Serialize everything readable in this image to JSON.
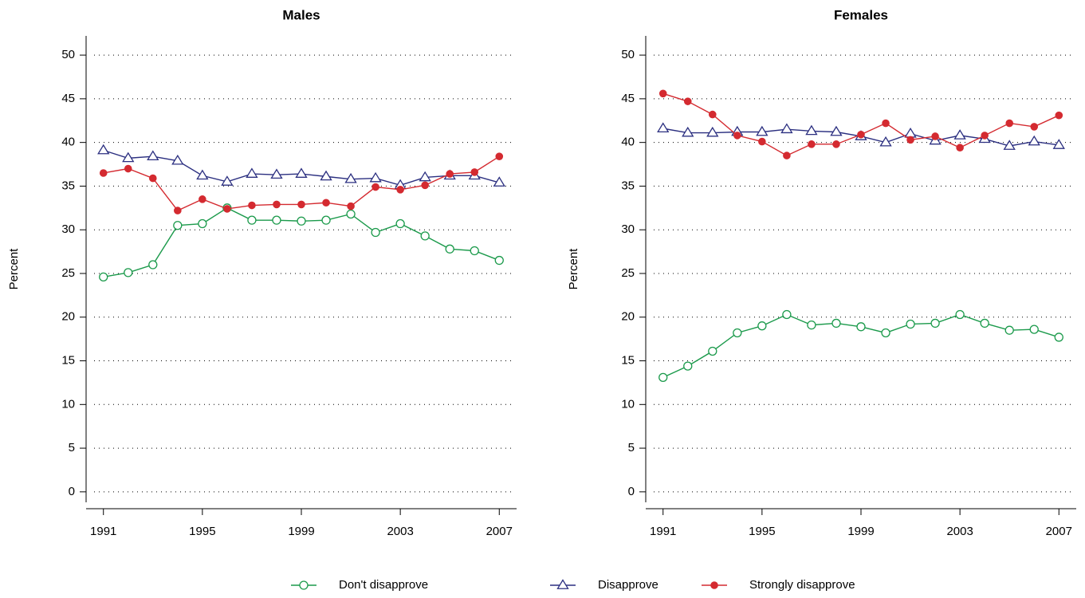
{
  "chart_data": [
    {
      "type": "line",
      "title": "Males",
      "y_label": "Percent",
      "x": [
        1991,
        1992,
        1993,
        1994,
        1995,
        1996,
        1997,
        1998,
        1999,
        2000,
        2001,
        2002,
        2003,
        2004,
        2005,
        2006,
        2007
      ],
      "xlim": [
        1990.3,
        2007.7
      ],
      "xticks": [
        1991,
        1995,
        1999,
        2003,
        2007
      ],
      "ylim": [
        -1.2,
        52.2
      ],
      "yticks": [
        0,
        5,
        10,
        15,
        20,
        25,
        30,
        35,
        40,
        45,
        50
      ],
      "grid": true,
      "series": [
        {
          "name": "Don't disapprove",
          "color": "#1b9a4b",
          "marker": "open-circle",
          "values": [
            24.6,
            25.1,
            26.0,
            30.5,
            30.7,
            32.5,
            31.1,
            31.1,
            31.0,
            31.1,
            31.8,
            29.7,
            30.7,
            29.3,
            27.8,
            27.6,
            26.5
          ]
        },
        {
          "name": "Disapprove",
          "color": "#2b2f80",
          "marker": "open-triangle",
          "values": [
            39.1,
            38.2,
            38.4,
            37.9,
            36.2,
            35.5,
            36.4,
            36.3,
            36.4,
            36.1,
            35.8,
            35.9,
            35.1,
            36.0,
            36.2,
            36.2,
            35.4
          ]
        },
        {
          "name": "Strongly disapprove",
          "color": "#d42a30",
          "marker": "filled-circle",
          "values": [
            36.5,
            37.0,
            35.9,
            32.2,
            33.5,
            32.4,
            32.8,
            32.9,
            32.9,
            33.1,
            32.7,
            34.9,
            34.6,
            35.1,
            36.4,
            36.6,
            38.4
          ]
        }
      ]
    },
    {
      "type": "line",
      "title": "Females",
      "y_label": "Percent",
      "x": [
        1991,
        1992,
        1993,
        1994,
        1995,
        1996,
        1997,
        1998,
        1999,
        2000,
        2001,
        2002,
        2003,
        2004,
        2005,
        2006,
        2007
      ],
      "xlim": [
        1990.3,
        2007.7
      ],
      "xticks": [
        1991,
        1995,
        1999,
        2003,
        2007
      ],
      "ylim": [
        -1.2,
        52.2
      ],
      "yticks": [
        0,
        5,
        10,
        15,
        20,
        25,
        30,
        35,
        40,
        45,
        50
      ],
      "grid": true,
      "series": [
        {
          "name": "Don't disapprove",
          "color": "#1b9a4b",
          "marker": "open-circle",
          "values": [
            13.1,
            14.4,
            16.1,
            18.2,
            19.0,
            20.3,
            19.1,
            19.3,
            18.9,
            18.2,
            19.2,
            19.3,
            20.3,
            19.3,
            18.5,
            18.6,
            17.7
          ]
        },
        {
          "name": "Disapprove",
          "color": "#2b2f80",
          "marker": "open-triangle",
          "values": [
            41.6,
            41.1,
            41.1,
            41.2,
            41.2,
            41.5,
            41.3,
            41.2,
            40.7,
            40.0,
            41.0,
            40.2,
            40.8,
            40.4,
            39.6,
            40.1,
            39.7
          ]
        },
        {
          "name": "Strongly disapprove",
          "color": "#d42a30",
          "marker": "filled-circle",
          "values": [
            45.6,
            44.7,
            43.2,
            40.8,
            40.1,
            38.5,
            39.8,
            39.8,
            40.9,
            42.2,
            40.3,
            40.7,
            39.4,
            40.8,
            42.2,
            41.8,
            43.1
          ]
        }
      ]
    }
  ]
}
